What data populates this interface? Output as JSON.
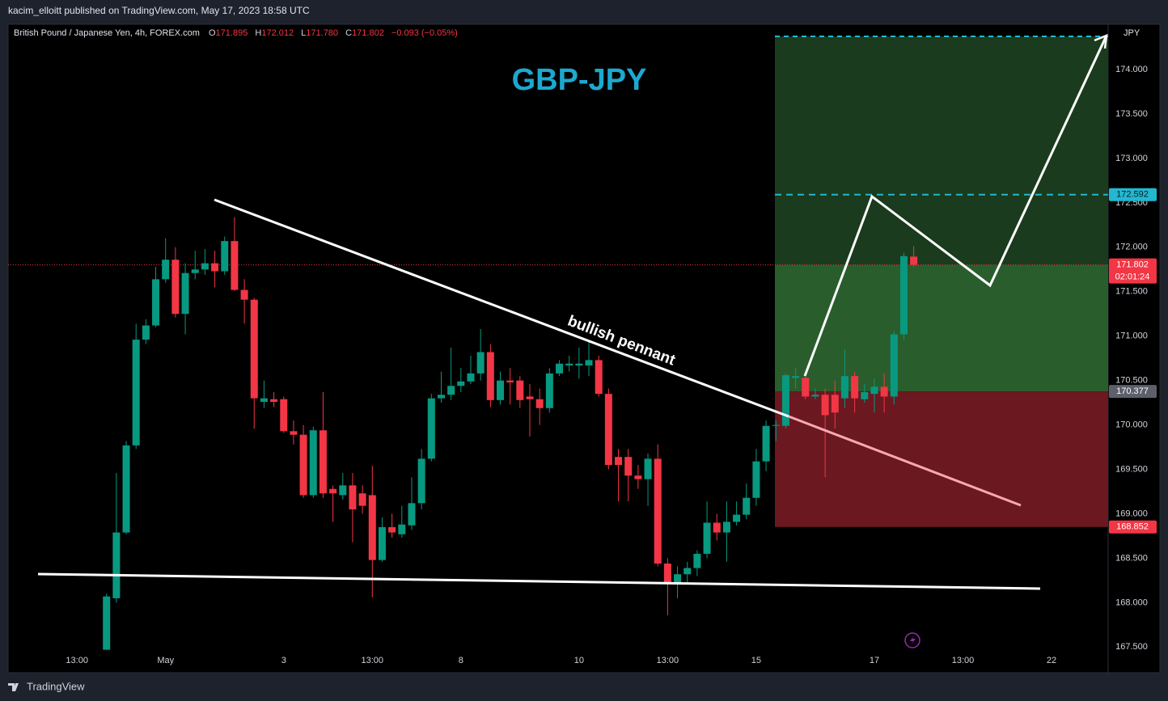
{
  "publisher_line": "kacim_elloitt published on TradingView.com, May 17, 2023 18:58 UTC",
  "footer_brand": "TradingView",
  "chart_data": {
    "type": "candlestick",
    "symbol": "British Pound / Japanese Yen, 4h, FOREX.com",
    "ohlc": [
      {
        "key": "O",
        "value": "171.895"
      },
      {
        "key": "H",
        "value": "172.012"
      },
      {
        "key": "L",
        "value": "171.780"
      },
      {
        "key": "C",
        "value": "171.802"
      }
    ],
    "change": "−0.093 (−0.05%)",
    "title": "GBP-JPY",
    "annotation": "bullish pennant",
    "currency": "JPY",
    "up_color": "#089981",
    "down_color": "#f23645",
    "grid": false,
    "ylim": [
      167.23,
      174.51
    ],
    "yticks": [
      {
        "value": 174,
        "label": "174.000"
      },
      {
        "value": 173.5,
        "label": "173.500"
      },
      {
        "value": 173,
        "label": "173.000"
      },
      {
        "value": 172.5,
        "label": "172.500"
      },
      {
        "value": 172,
        "label": "172.000"
      },
      {
        "value": 171.5,
        "label": "171.500"
      },
      {
        "value": 171,
        "label": "171.000"
      },
      {
        "value": 170.5,
        "label": "170.500"
      },
      {
        "value": 170,
        "label": "170.000"
      },
      {
        "value": 169.5,
        "label": "169.500"
      },
      {
        "value": 169,
        "label": "169.000"
      },
      {
        "value": 168.5,
        "label": "168.500"
      },
      {
        "value": 168,
        "label": "168.000"
      },
      {
        "value": 167.5,
        "label": "167.500"
      }
    ],
    "price_labels": [
      {
        "value": 172.592,
        "color": "#22b8d0"
      },
      {
        "value": 171.802,
        "color": "#f23645",
        "countdown": "02:01:24"
      },
      {
        "value": 170.377,
        "color": "#5d606b"
      },
      {
        "value": 168.852,
        "color": "#f23645"
      }
    ],
    "categories": [
      null,
      null,
      null,
      null,
      null,
      null,
      null,
      "13:00",
      null,
      null,
      null,
      null,
      null,
      null,
      null,
      null,
      "May",
      null,
      null,
      null,
      null,
      null,
      null,
      null,
      null,
      null,
      null,
      null,
      "3",
      null,
      null,
      null,
      null,
      null,
      null,
      null,
      null,
      "13:00",
      null,
      null,
      null,
      null,
      null,
      null,
      null,
      null,
      "8",
      null,
      null,
      null,
      null,
      null,
      null,
      null,
      null,
      null,
      null,
      null,
      "10",
      null,
      null,
      null,
      null,
      null,
      null,
      null,
      null,
      "13:00",
      null,
      null,
      null,
      null,
      null,
      null,
      null,
      null,
      "15",
      null,
      null,
      null,
      null,
      null,
      null,
      null,
      null,
      null,
      null,
      null,
      "17",
      null,
      null,
      null,
      null,
      null,
      null,
      null,
      null,
      "13:00",
      null,
      null,
      null,
      null,
      null,
      null,
      null,
      null,
      "22",
      null,
      null,
      null,
      null,
      null
    ],
    "open": [
      null,
      null,
      null,
      null,
      null,
      null,
      null,
      null,
      null,
      null,
      167.47,
      168.05,
      168.79,
      169.77,
      170.96,
      171.12,
      171.64,
      171.86,
      171.25,
      171.71,
      171.75,
      171.82,
      171.73,
      172.07,
      171.52,
      171.41,
      170.26,
      170.29,
      170.29,
      169.93,
      169.89,
      169.21,
      169.94,
      169.28,
      169.21,
      169.32,
      169.23,
      169.21,
      168.48,
      168.85,
      168.77,
      168.87,
      169.12,
      169.62,
      170.3,
      170.34,
      170.44,
      170.49,
      170.58,
      170.82,
      170.28,
      170.5,
      170.5,
      170.32,
      170.29,
      170.19,
      170.58,
      170.67,
      170.67,
      170.67,
      170.73,
      170.35,
      169.64,
      169.64,
      169.43,
      169.39,
      169.62,
      168.44,
      168.21,
      168.32,
      168.39,
      168.55,
      168.9,
      168.79,
      168.91,
      168.99,
      169.18,
      169.59,
      169.99,
      169.99,
      170.53,
      170.53,
      170.32,
      170.34,
      170.34,
      170.3,
      170.55,
      170.29,
      170.35,
      170.43,
      170.32,
      171.02,
      171.895,
      null,
      null,
      null,
      null,
      null,
      null,
      null,
      null,
      null,
      null,
      null,
      null,
      null,
      null,
      null,
      null,
      null,
      null,
      null
    ],
    "high": [
      null,
      null,
      null,
      null,
      null,
      null,
      null,
      null,
      null,
      null,
      168.1,
      169.46,
      169.82,
      171.14,
      171.19,
      171.78,
      172.1,
      172.0,
      171.82,
      171.96,
      171.98,
      171.96,
      172.12,
      172.34,
      171.64,
      171.43,
      170.5,
      170.37,
      170.32,
      170.05,
      170.0,
      169.98,
      170.37,
      169.32,
      169.46,
      169.46,
      169.32,
      169.54,
      168.96,
      169.0,
      169.09,
      169.41,
      169.73,
      170.35,
      170.6,
      170.87,
      170.64,
      170.78,
      171.08,
      170.91,
      170.6,
      170.64,
      170.55,
      170.46,
      170.41,
      170.64,
      170.73,
      170.78,
      170.87,
      170.96,
      170.78,
      170.41,
      169.73,
      169.73,
      169.55,
      169.68,
      169.78,
      168.5,
      168.41,
      168.46,
      168.59,
      169.14,
      169.0,
      169.14,
      169.14,
      169.34,
      169.73,
      170.05,
      170.05,
      170.58,
      170.64,
      170.6,
      170.41,
      170.41,
      170.5,
      170.85,
      170.6,
      170.46,
      170.52,
      170.58,
      171.05,
      171.94,
      172.012,
      null,
      null,
      null,
      null,
      null,
      null,
      null,
      null,
      null,
      null,
      null,
      null,
      null,
      null,
      null,
      null,
      null,
      null,
      null
    ],
    "low": [
      null,
      null,
      null,
      null,
      null,
      null,
      null,
      null,
      null,
      null,
      167.47,
      168.0,
      168.77,
      169.73,
      170.91,
      171.1,
      171.6,
      171.21,
      171.02,
      171.64,
      171.69,
      171.55,
      171.69,
      171.51,
      171.14,
      169.96,
      170.19,
      170.2,
      169.91,
      169.78,
      169.18,
      169.18,
      169.18,
      168.91,
      169.16,
      168.68,
      169.0,
      168.06,
      168.46,
      168.73,
      168.73,
      168.82,
      169.05,
      169.59,
      170.25,
      170.28,
      170.37,
      170.46,
      170.5,
      170.2,
      170.23,
      170.23,
      170.19,
      169.87,
      170.0,
      170.14,
      170.55,
      170.6,
      170.52,
      170.55,
      170.32,
      169.5,
      169.14,
      169.14,
      169.28,
      169.09,
      168.41,
      167.86,
      168.05,
      168.23,
      168.3,
      168.5,
      168.7,
      168.46,
      168.87,
      168.94,
      169.09,
      169.48,
      169.82,
      169.96,
      170.41,
      170.29,
      170.29,
      169.41,
      169.96,
      170.19,
      170.14,
      170.25,
      170.14,
      170.14,
      170.23,
      170.96,
      171.78,
      null,
      null,
      null,
      null,
      null,
      null,
      null,
      null,
      null,
      null,
      null,
      null,
      null,
      null,
      null,
      null,
      null,
      null,
      null
    ],
    "close": [
      null,
      null,
      null,
      null,
      null,
      null,
      null,
      null,
      null,
      null,
      168.07,
      168.79,
      169.77,
      170.96,
      171.12,
      171.64,
      171.86,
      171.25,
      171.71,
      171.75,
      171.82,
      171.73,
      172.07,
      171.52,
      171.41,
      170.3,
      170.3,
      170.26,
      169.93,
      169.89,
      169.21,
      169.94,
      169.23,
      169.23,
      169.32,
      169.05,
      169.09,
      168.48,
      168.85,
      168.79,
      168.88,
      169.12,
      169.62,
      170.3,
      170.34,
      170.44,
      170.49,
      170.58,
      170.82,
      170.28,
      170.5,
      170.48,
      170.28,
      170.29,
      170.19,
      170.58,
      170.69,
      170.69,
      170.69,
      170.73,
      170.35,
      169.55,
      169.55,
      169.43,
      169.39,
      169.62,
      168.44,
      168.21,
      168.32,
      168.39,
      168.55,
      168.9,
      168.79,
      168.91,
      168.99,
      169.18,
      169.59,
      169.99,
      170.0,
      170.56,
      170.55,
      170.32,
      170.34,
      170.11,
      170.14,
      170.55,
      170.3,
      170.37,
      170.43,
      170.32,
      171.02,
      171.9,
      171.802,
      null,
      null,
      null,
      null,
      null,
      null,
      null,
      null,
      null,
      null,
      null,
      null,
      null,
      null,
      null,
      null,
      null,
      null,
      null
    ]
  }
}
